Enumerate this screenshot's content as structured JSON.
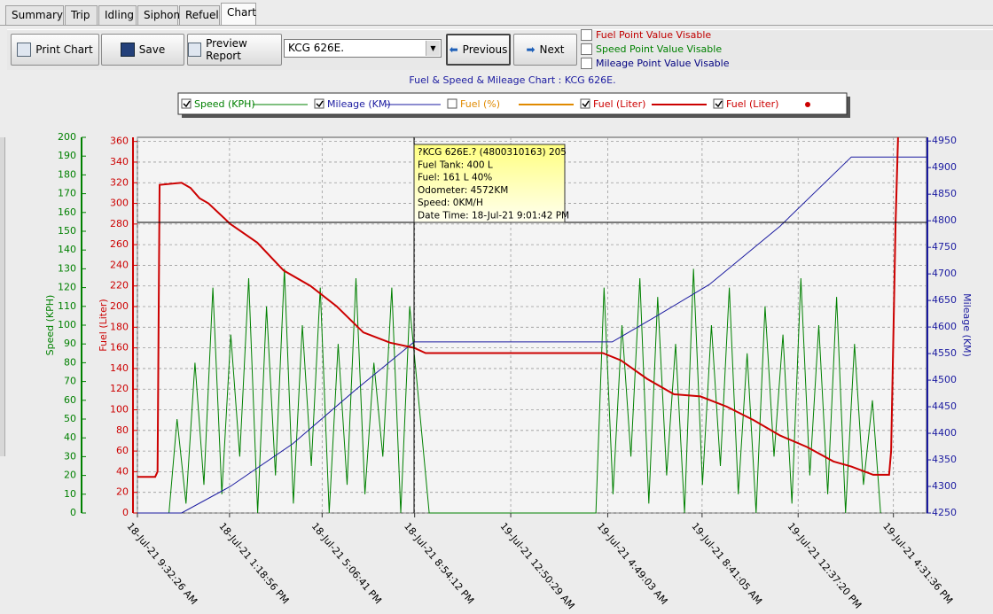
{
  "tabs": [
    {
      "label": "Summary",
      "selected": false
    },
    {
      "label": "Trip",
      "selected": false
    },
    {
      "label": "Idling",
      "selected": false
    },
    {
      "label": "Siphon",
      "selected": false
    },
    {
      "label": "Refuel",
      "selected": false
    },
    {
      "label": "Chart",
      "selected": true
    }
  ],
  "toolbar": {
    "print": "Print Chart",
    "save": "Save",
    "preview": "Preview Report",
    "vehicle": "KCG 626E.",
    "previous": "Previous",
    "next": "Next"
  },
  "options": [
    {
      "label": "Fuel Point Value Visable",
      "color": "#c00000",
      "checked": false
    },
    {
      "label": "Speed Point Value Visable",
      "color": "#008000",
      "checked": false
    },
    {
      "label": "Mileage Point Value Visable",
      "color": "#000080",
      "checked": false
    }
  ],
  "chart_data": {
    "type": "line",
    "title": "Fuel & Speed & Mileage Chart : KCG 626E.",
    "ylabel": "Fuel (Liter)",
    "y2label": "Mileage (KM)",
    "y3label": "Speed (KPH)",
    "xlim": [
      "2021-07-18T09:32:26",
      "2021-07-19T17:53:00"
    ],
    "xticks": [
      {
        "value": "2021-07-18T09:32:26",
        "label": "18-Jul-21 9:32:26 AM"
      },
      {
        "value": "2021-07-18T13:18:56",
        "label": "18-Jul-21 1:18:56 PM"
      },
      {
        "value": "2021-07-18T17:06:41",
        "label": "18-Jul-21 5:06:41 PM"
      },
      {
        "value": "2021-07-18T20:54:12",
        "label": "18-Jul-21 8:54:12 PM"
      },
      {
        "value": "2021-07-19T00:50:29",
        "label": "19-Jul-21 12:50:29 AM"
      },
      {
        "value": "2021-07-19T04:49:03",
        "label": "19-Jul-21 4:49:03 AM"
      },
      {
        "value": "2021-07-19T08:41:05",
        "label": "19-Jul-21 8:41:05 AM"
      },
      {
        "value": "2021-07-19T12:37:20",
        "label": "19-Jul-21 12:37:20 PM"
      },
      {
        "value": "2021-07-19T16:31:36",
        "label": "19-Jul-21 4:31:36 PM"
      }
    ],
    "ylim": [
      0,
      364
    ],
    "yticks": [
      0,
      20,
      40,
      60,
      80,
      100,
      120,
      140,
      160,
      180,
      200,
      220,
      240,
      260,
      280,
      300,
      320,
      340,
      360
    ],
    "ycolor": "#cc0000",
    "y2lim": [
      4250,
      4957
    ],
    "y2ticks": [
      4250,
      4300,
      4350,
      4400,
      4450,
      4500,
      4550,
      4600,
      4650,
      4700,
      4750,
      4800,
      4850,
      4900,
      4950
    ],
    "y2color": "#1a1aa0",
    "y3lim": [
      0,
      200
    ],
    "y3ticks": [
      0,
      10,
      20,
      30,
      40,
      50,
      60,
      70,
      80,
      90,
      100,
      110,
      120,
      130,
      140,
      150,
      160,
      170,
      180,
      190,
      200
    ],
    "y3color": "#008000",
    "grid": true,
    "tooltip": [
      "?KCG 626E.? (4800310163) 205",
      "Fuel Tank: 400 L",
      "Fuel: 161 L 40%",
      "Odometer: 4572KM",
      "Speed: 0KM/H",
      "Date Time: 18-Jul-21 9:01:42 PM"
    ],
    "series": [
      {
        "name": "Speed (KPH)",
        "color": "#008000",
        "axis": "y3",
        "style": "line",
        "checked": true,
        "x": [
          "2021-07-18T09:32",
          "2021-07-18T10:50",
          "2021-07-18T11:10",
          "2021-07-18T11:32",
          "2021-07-18T11:54",
          "2021-07-18T12:16",
          "2021-07-18T12:38",
          "2021-07-18T13:00",
          "2021-07-18T13:22",
          "2021-07-18T13:44",
          "2021-07-18T14:06",
          "2021-07-18T14:28",
          "2021-07-18T14:50",
          "2021-07-18T15:12",
          "2021-07-18T15:34",
          "2021-07-18T15:56",
          "2021-07-18T16:18",
          "2021-07-18T16:40",
          "2021-07-18T17:02",
          "2021-07-18T17:24",
          "2021-07-18T17:46",
          "2021-07-18T18:08",
          "2021-07-18T18:30",
          "2021-07-18T18:52",
          "2021-07-18T19:14",
          "2021-07-18T19:36",
          "2021-07-18T19:58",
          "2021-07-18T20:20",
          "2021-07-18T20:42",
          "2021-07-18T21:04",
          "2021-07-18T21:30",
          "2021-07-19T04:20",
          "2021-07-19T04:40",
          "2021-07-19T05:02",
          "2021-07-19T05:24",
          "2021-07-19T05:46",
          "2021-07-19T06:08",
          "2021-07-19T06:30",
          "2021-07-19T06:52",
          "2021-07-19T07:14",
          "2021-07-19T07:36",
          "2021-07-19T07:58",
          "2021-07-19T08:20",
          "2021-07-19T08:42",
          "2021-07-19T09:04",
          "2021-07-19T09:26",
          "2021-07-19T09:48",
          "2021-07-19T10:10",
          "2021-07-19T10:32",
          "2021-07-19T10:54",
          "2021-07-19T11:16",
          "2021-07-19T11:38",
          "2021-07-19T12:00",
          "2021-07-19T12:22",
          "2021-07-19T12:44",
          "2021-07-19T13:06",
          "2021-07-19T13:28",
          "2021-07-19T13:50",
          "2021-07-19T14:12",
          "2021-07-19T14:34",
          "2021-07-19T14:56",
          "2021-07-19T15:18",
          "2021-07-19T15:40",
          "2021-07-19T16:00"
        ],
        "values": [
          0,
          0,
          50,
          5,
          80,
          15,
          120,
          10,
          95,
          30,
          125,
          0,
          110,
          20,
          130,
          5,
          100,
          25,
          120,
          0,
          90,
          15,
          125,
          10,
          80,
          30,
          120,
          0,
          110,
          60,
          0,
          0,
          120,
          10,
          100,
          30,
          125,
          5,
          115,
          20,
          90,
          0,
          130,
          15,
          100,
          25,
          120,
          10,
          85,
          0,
          110,
          30,
          95,
          5,
          125,
          20,
          100,
          10,
          115,
          0,
          90,
          15,
          60,
          0
        ]
      },
      {
        "name": "Mileage (KM)",
        "color": "#1a1aa0",
        "axis": "y2",
        "style": "line",
        "checked": true,
        "x": [
          "2021-07-18T09:32",
          "2021-07-18T11:21",
          "2021-07-18T13:21",
          "2021-07-18T15:54",
          "2021-07-18T18:26",
          "2021-07-18T20:53",
          "2021-07-19T05:00",
          "2021-07-19T06:48",
          "2021-07-19T08:59",
          "2021-07-19T11:53",
          "2021-07-19T14:48",
          "2021-07-19T17:53"
        ],
        "values": [
          4250,
          4250,
          4300,
          4380,
          4480,
          4572,
          4572,
          4620,
          4680,
          4790,
          4920,
          4920
        ]
      },
      {
        "name": "Fuel (%)",
        "color": "#e08a00",
        "axis": "y",
        "style": "line",
        "checked": false,
        "x": [],
        "values": []
      },
      {
        "name": "Fuel (Liter)",
        "color": "#cc0000",
        "axis": "y",
        "style": "line",
        "checked": true,
        "x": [
          "2021-07-18T09:32",
          "2021-07-18T10:16",
          "2021-07-18T10:22",
          "2021-07-18T10:27",
          "2021-07-18T11:21",
          "2021-07-18T11:43",
          "2021-07-18T12:05",
          "2021-07-18T12:27",
          "2021-07-18T13:21",
          "2021-07-18T14:27",
          "2021-07-18T15:32",
          "2021-07-18T16:38",
          "2021-07-18T17:43",
          "2021-07-18T18:48",
          "2021-07-18T19:54",
          "2021-07-18T20:53",
          "2021-07-18T21:21",
          "2021-07-19T04:37",
          "2021-07-19T05:21",
          "2021-07-19T06:26",
          "2021-07-19T07:32",
          "2021-07-19T08:37",
          "2021-07-19T09:42",
          "2021-07-19T10:48",
          "2021-07-19T11:53",
          "2021-07-19T12:59",
          "2021-07-19T14:04",
          "2021-07-19T14:48",
          "2021-07-19T15:42",
          "2021-07-19T16:21",
          "2021-07-19T16:26",
          "2021-07-19T16:37",
          "2021-07-19T16:43"
        ],
        "values": [
          35,
          35,
          40,
          318,
          320,
          315,
          305,
          300,
          280,
          262,
          235,
          220,
          200,
          175,
          165,
          160,
          155,
          155,
          148,
          130,
          115,
          113,
          103,
          90,
          75,
          64,
          50,
          45,
          37,
          37,
          60,
          280,
          364
        ]
      },
      {
        "name": "Fuel (Liter)",
        "color": "#cc0000",
        "axis": "y",
        "style": "points",
        "checked": true,
        "x": [],
        "values": []
      }
    ]
  }
}
